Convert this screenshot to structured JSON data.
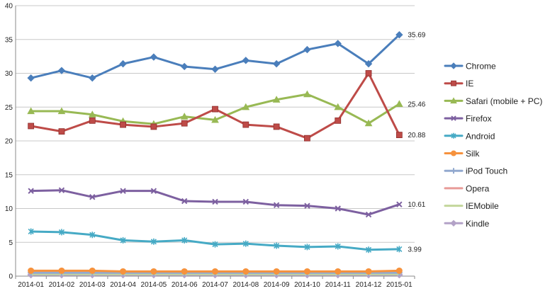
{
  "chart_data": {
    "type": "line",
    "title": "",
    "xlabel": "",
    "ylabel": "",
    "ylim": [
      0,
      40
    ],
    "yticks": [
      0,
      5,
      10,
      15,
      20,
      25,
      30,
      35,
      40
    ],
    "grid": true,
    "legend_position": "right",
    "categories": [
      "2014-01",
      "2014-02",
      "2014-03",
      "2014-04",
      "2014-05",
      "2014-06",
      "2014-07",
      "2014-08",
      "2014-09",
      "2014-10",
      "2014-11",
      "2014-12",
      "2015-01"
    ],
    "series": [
      {
        "name": "Chrome",
        "color": "#4a7ebb",
        "marker": "diamond",
        "values": [
          29.3,
          30.4,
          29.3,
          31.4,
          32.4,
          31.0,
          30.6,
          31.9,
          31.4,
          33.5,
          34.4,
          31.4,
          35.69
        ],
        "end_label": "35.69"
      },
      {
        "name": "IE",
        "color": "#be4b48",
        "marker": "square",
        "values": [
          22.2,
          21.4,
          23.0,
          22.4,
          22.1,
          22.6,
          24.7,
          22.4,
          22.1,
          20.4,
          23.0,
          30.0,
          20.88
        ],
        "end_label": "20.88"
      },
      {
        "name": "Safari (mobile + PC)",
        "color": "#98b954",
        "marker": "triangle",
        "values": [
          24.4,
          24.4,
          23.9,
          22.9,
          22.5,
          23.6,
          23.1,
          25.0,
          26.1,
          26.9,
          25.0,
          22.6,
          25.46
        ],
        "end_label": "25.46"
      },
      {
        "name": "Firefox",
        "color": "#7d60a0",
        "marker": "x",
        "values": [
          12.6,
          12.7,
          11.7,
          12.6,
          12.6,
          11.1,
          11.0,
          11.0,
          10.5,
          10.4,
          10.0,
          9.1,
          10.61
        ],
        "end_label": "10.61"
      },
      {
        "name": "Android",
        "color": "#46aac5",
        "marker": "star",
        "values": [
          6.6,
          6.5,
          6.1,
          5.3,
          5.1,
          5.3,
          4.7,
          4.8,
          4.5,
          4.3,
          4.4,
          3.9,
          3.99
        ],
        "end_label": "3.99"
      },
      {
        "name": "Silk",
        "color": "#f6923d",
        "marker": "circle",
        "values": [
          0.8,
          0.8,
          0.8,
          0.7,
          0.7,
          0.7,
          0.7,
          0.7,
          0.7,
          0.7,
          0.7,
          0.7,
          0.8
        ],
        "end_label": ""
      },
      {
        "name": "iPod Touch",
        "color": "#92a9cf",
        "marker": "plus",
        "values": [
          0.5,
          0.5,
          0.5,
          0.5,
          0.5,
          0.5,
          0.5,
          0.5,
          0.5,
          0.5,
          0.5,
          0.5,
          0.5
        ],
        "end_label": ""
      },
      {
        "name": "Opera",
        "color": "#e89b98",
        "marker": "none",
        "values": [
          0.6,
          0.6,
          0.6,
          0.6,
          0.6,
          0.6,
          0.6,
          0.6,
          0.6,
          0.6,
          0.6,
          0.6,
          0.6
        ],
        "end_label": ""
      },
      {
        "name": "IEMobile",
        "color": "#c3d69b",
        "marker": "none",
        "values": [
          0.3,
          0.3,
          0.3,
          0.3,
          0.3,
          0.3,
          0.3,
          0.3,
          0.3,
          0.3,
          0.3,
          0.3,
          0.3
        ],
        "end_label": ""
      },
      {
        "name": "Kindle",
        "color": "#b3a2c7",
        "marker": "diamond",
        "values": [
          0.2,
          0.2,
          0.2,
          0.2,
          0.2,
          0.2,
          0.2,
          0.2,
          0.2,
          0.2,
          0.2,
          0.2,
          0.2
        ],
        "end_label": ""
      }
    ]
  }
}
